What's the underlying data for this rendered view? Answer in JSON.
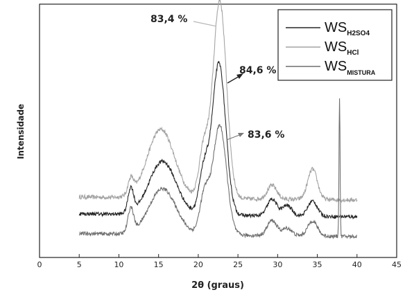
{
  "chart_data": {
    "type": "line",
    "xlabel": "2θ (graus)",
    "ylabel": "Intensidade",
    "xlim": [
      0,
      45
    ],
    "xticks": [
      0,
      5,
      10,
      15,
      20,
      25,
      30,
      35,
      40,
      45
    ],
    "x_range_data": [
      5,
      40
    ],
    "grid": false,
    "legend_position": "top-right",
    "series": [
      {
        "legend_main": "WS",
        "legend_sub": "H2SO4",
        "color": "#262626",
        "peak_label": "84,6 %",
        "peaks": [
          [
            11.5,
            0.16
          ],
          [
            15.5,
            0.35
          ],
          [
            20.7,
            0.28
          ],
          [
            22.6,
            1.0
          ],
          [
            29.3,
            0.11
          ],
          [
            31.2,
            0.07
          ],
          [
            34.4,
            0.1
          ]
        ],
        "baseline": [
          0.06,
          0.04
        ],
        "offset": 0.0,
        "noise": 0.012
      },
      {
        "legend_main": "WS",
        "legend_sub": "HCl",
        "color": "#a4a4a4",
        "peak_label": "83,4 %",
        "peaks": [
          [
            11.5,
            0.1
          ],
          [
            15.3,
            0.45
          ],
          [
            20.7,
            0.32
          ],
          [
            22.7,
            1.3
          ],
          [
            29.3,
            0.09
          ],
          [
            34.4,
            0.2
          ]
        ],
        "baseline": [
          0.07,
          0.05
        ],
        "offset": 0.1,
        "noise": 0.014
      },
      {
        "legend_main": "WS",
        "legend_sub": "MISTURA",
        "color": "#6f6f6f",
        "peak_label": "83,6 %",
        "peaks": [
          [
            11.5,
            0.16
          ],
          [
            15.5,
            0.3
          ],
          [
            20.8,
            0.26
          ],
          [
            22.7,
            0.72
          ],
          [
            29.3,
            0.1
          ],
          [
            31.2,
            0.05
          ],
          [
            34.4,
            0.1
          ],
          [
            37.8,
            0.9
          ]
        ],
        "baseline": [
          0.04,
          0.02
        ],
        "offset": -0.11,
        "noise": 0.012
      }
    ]
  }
}
